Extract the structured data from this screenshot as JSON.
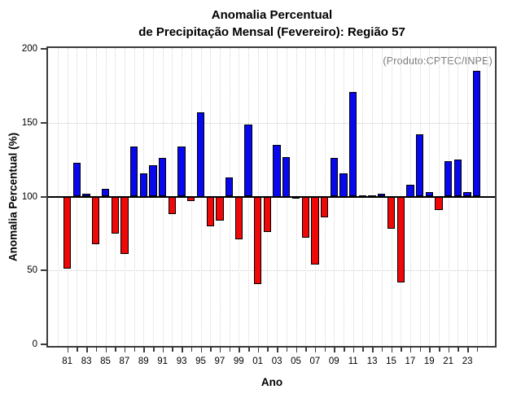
{
  "title": {
    "line1": "Anomalia Percentual",
    "line2": "de Precipitação Mensal (Fevereiro): Região 57"
  },
  "annotation": "(Produto:CPTEC/INPE)",
  "chart_data": {
    "type": "bar",
    "title": "Anomalia Percentual de Precipitação Mensal (Fevereiro): Região 57",
    "xlabel": "Ano",
    "ylabel": "Anomalia Percentual (%)",
    "ylim": [
      0,
      200
    ],
    "yticks": [
      0,
      50,
      100,
      150,
      200
    ],
    "baseline": 100,
    "grid": true,
    "legend": "none",
    "years": [
      1981,
      1982,
      1983,
      1984,
      1985,
      1986,
      1987,
      1988,
      1989,
      1990,
      1991,
      1992,
      1993,
      1994,
      1995,
      1996,
      1997,
      1998,
      1999,
      2000,
      2001,
      2002,
      2003,
      2004,
      2005,
      2006,
      2007,
      2008,
      2009,
      2010,
      2011,
      2012,
      2013,
      2014,
      2015,
      2016,
      2017,
      2018,
      2019,
      2020,
      2021,
      2022,
      2023,
      2024
    ],
    "values": [
      51,
      123,
      102,
      68,
      105,
      75,
      61,
      134,
      116,
      121,
      126,
      88,
      134,
      97,
      157,
      80,
      84,
      113,
      71,
      149,
      41,
      76,
      135,
      127,
      100,
      72,
      54,
      86,
      126,
      116,
      171,
      101,
      101,
      102,
      78,
      42,
      108,
      142,
      103,
      91,
      124,
      125,
      103,
      185
    ],
    "x_tick_labels": [
      "81",
      "83",
      "85",
      "87",
      "89",
      "91",
      "93",
      "95",
      "97",
      "99",
      "01",
      "03",
      "05",
      "07",
      "09",
      "11",
      "13",
      "15",
      "17",
      "19",
      "21",
      "23"
    ],
    "colors": {
      "above_baseline": "#0808EE",
      "below_baseline": "#EE0808",
      "bar_outline": "#000000",
      "annotation_text": "#7a7a7a",
      "grid": "#cccccc",
      "axis": "#3b3b3b"
    }
  }
}
